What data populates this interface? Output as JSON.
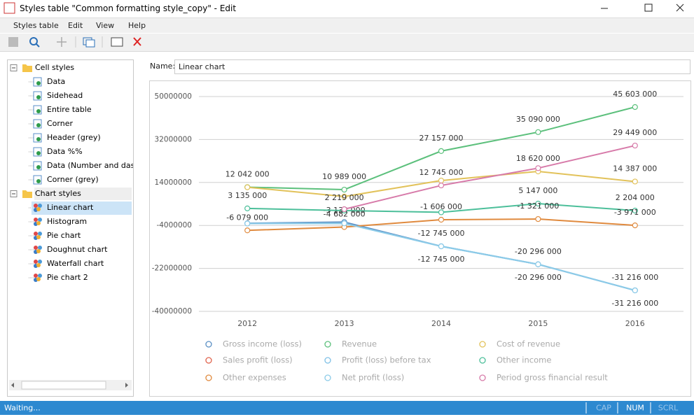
{
  "window": {
    "title": "Styles table \"Common formatting style_copy\" - Edit",
    "menu": [
      "Styles table",
      "Edit",
      "View",
      "Help"
    ],
    "tree": [
      {
        "label": "Cell styles",
        "children": [
          "Data",
          "Sidehead",
          "Entire table",
          "Corner",
          "Header (grey)",
          "Data %%",
          "Data (Number and dash",
          "Corner (grey)"
        ]
      },
      {
        "label": "Chart styles",
        "children": [
          "Linear chart",
          "Histogram",
          "Pie chart",
          "Doughnut chart",
          "Waterfall chart",
          "Pie chart 2"
        ]
      }
    ],
    "name_label": "Name:",
    "name_value": "Linear chart",
    "status": "Waiting...",
    "indicators": [
      "CAP",
      "NUM",
      "SCRL"
    ]
  },
  "chart_data": {
    "type": "line",
    "categories": [
      "2012",
      "2013",
      "2014",
      "2015",
      "2016"
    ],
    "ylim": [
      -40000000,
      56000000
    ],
    "yticks": [
      50000000,
      32000000,
      14000000,
      -4000000,
      -22000000,
      -40000000
    ],
    "grid": true,
    "series": [
      {
        "name": "Gross income (loss)",
        "color": "#5b8fc4",
        "values": [
          -3100000,
          -2600000,
          -12745000,
          -20296000,
          -31216000
        ],
        "value_labels": [
          null,
          null,
          "-12 745 000",
          "-20 296 000",
          "-31 216 000"
        ]
      },
      {
        "name": "Revenue",
        "color": "#5cc07c",
        "values": [
          12042000,
          10989000,
          27157000,
          35090000,
          45603000
        ],
        "value_labels": [
          "12 042 000",
          "10 989 000",
          "27 157 000",
          "35 090 000",
          "45 603 000"
        ]
      },
      {
        "name": "Cost of revenue",
        "color": "#e2c25a",
        "values": [
          12000000,
          8100000,
          14800000,
          18620000,
          14387000
        ],
        "value_labels": [
          null,
          null,
          null,
          "18 620 000",
          "14 387 000"
        ]
      },
      {
        "name": "Sales profit (loss)",
        "color": "#e0634c",
        "values": [
          null,
          null,
          null,
          null,
          null
        ]
      },
      {
        "name": "Profit (loss) before tax",
        "color": "#7ec0e6",
        "values": [
          -3200000,
          -3132000,
          -12745000,
          -20296000,
          -31216000
        ],
        "value_labels": [
          null,
          "-3 132 000",
          "-12 745 000",
          "-20 296 000",
          "-31 216 000"
        ]
      },
      {
        "name": "Other income",
        "color": "#4cbf9a",
        "values": [
          3135000,
          2219000,
          1500000,
          5147000,
          2204000
        ],
        "value_labels": [
          "3 135 000",
          "2 219 000",
          null,
          "5 147 000",
          "2 204 000"
        ]
      },
      {
        "name": "Other expenses",
        "color": "#e08a3e",
        "values": [
          -6079000,
          -4682000,
          -1606000,
          -1321000,
          -3971000
        ],
        "value_labels": [
          "-6 079 000",
          "-4 682 000",
          "-1 606 000",
          "-1 321 000",
          "-3 971 000"
        ]
      },
      {
        "name": "Net profit (loss)",
        "color": "#8ccbe8",
        "values": [
          -3200000,
          -3132000,
          -12745000,
          -20296000,
          -31216000
        ]
      },
      {
        "name": "Period gross financial result",
        "color": "#d77aa9",
        "values": [
          null,
          2800000,
          12745000,
          20000000,
          29449000
        ],
        "value_labels": [
          null,
          null,
          "12 745 000",
          null,
          "29 449 000"
        ]
      }
    ]
  }
}
